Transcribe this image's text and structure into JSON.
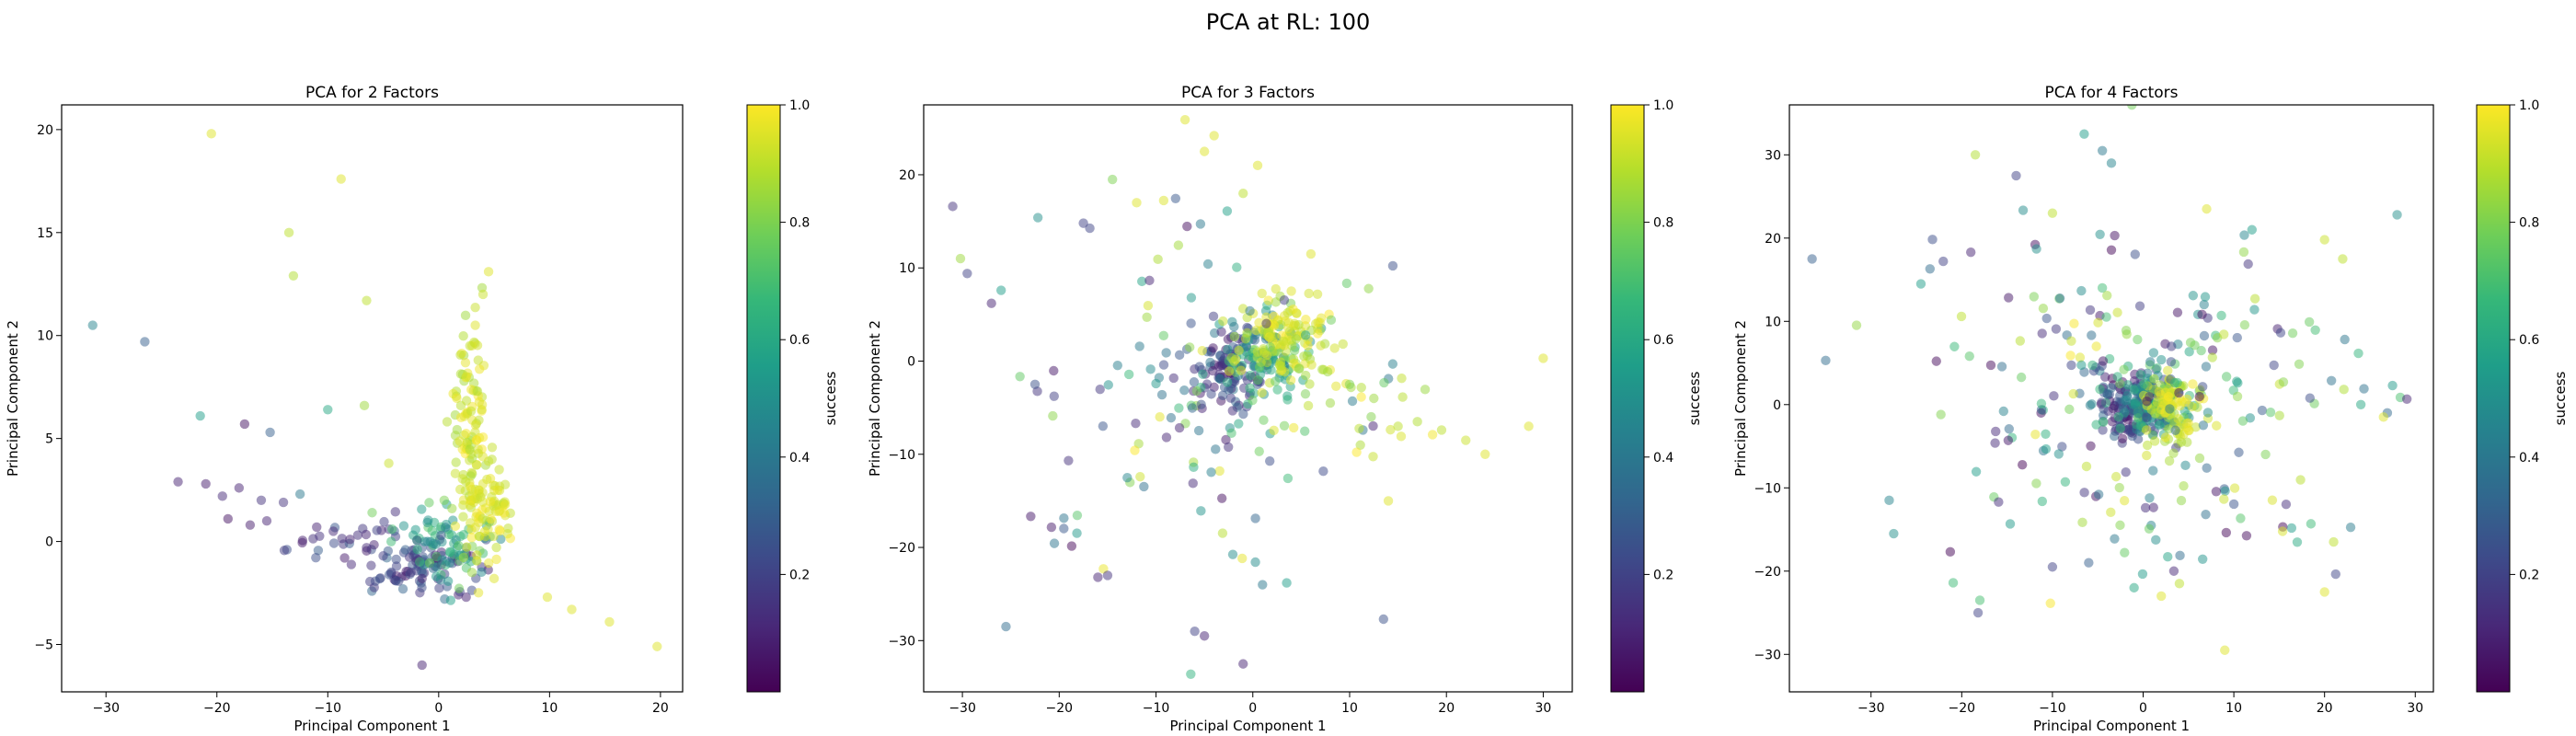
{
  "figure": {
    "suptitle": "PCA at RL: 100"
  },
  "colormap": {
    "name": "viridis",
    "stops": [
      "#440154",
      "#482878",
      "#3e4989",
      "#31688e",
      "#26828e",
      "#1f9e89",
      "#35b779",
      "#6ece58",
      "#b5de2b",
      "#fde725"
    ]
  },
  "chart_data": [
    {
      "type": "scatter",
      "title": "PCA for 2 Factors",
      "xlabel": "Principal Component 1",
      "ylabel": "Principal Component 2",
      "xlim": [
        -34,
        22
      ],
      "ylim": [
        -7.3,
        21.2
      ],
      "xticks": [
        -30,
        -20,
        -10,
        0,
        10,
        20
      ],
      "yticks": [
        -5,
        0,
        5,
        10,
        15,
        20
      ],
      "grid": false,
      "color_by": "success",
      "colorbar": {
        "label": "success",
        "range": [
          0,
          1
        ],
        "ticks": [
          "0.2",
          "0.4",
          "0.6",
          "0.8",
          "1.0"
        ]
      },
      "points": [
        {
          "x": -31.2,
          "y": 10.5,
          "c": 0.45
        },
        {
          "x": -26.5,
          "y": 9.7,
          "c": 0.3
        },
        {
          "x": -21.5,
          "y": 6.1,
          "c": 0.55
        },
        {
          "x": -20.5,
          "y": 19.8,
          "c": 0.95
        },
        {
          "x": -17.5,
          "y": 5.7,
          "c": 0.05
        },
        {
          "x": -15.2,
          "y": 5.3,
          "c": 0.3
        },
        {
          "x": -10.0,
          "y": 6.4,
          "c": 0.6
        },
        {
          "x": -8.8,
          "y": 17.6,
          "c": 0.95
        },
        {
          "x": -13.5,
          "y": 15.0,
          "c": 0.9
        },
        {
          "x": -13.1,
          "y": 12.9,
          "c": 0.88
        },
        {
          "x": -6.5,
          "y": 11.7,
          "c": 0.9
        },
        {
          "x": -6.7,
          "y": 6.6,
          "c": 0.85
        },
        {
          "x": -4.5,
          "y": 3.8,
          "c": 0.92
        },
        {
          "x": -23.5,
          "y": 2.9,
          "c": 0.1
        },
        {
          "x": -21.0,
          "y": 2.8,
          "c": 0.08
        },
        {
          "x": -19.5,
          "y": 2.2,
          "c": 0.12
        },
        {
          "x": -18.0,
          "y": 2.6,
          "c": 0.1
        },
        {
          "x": -16.0,
          "y": 2.0,
          "c": 0.15
        },
        {
          "x": -14.0,
          "y": 1.9,
          "c": 0.15
        },
        {
          "x": -12.5,
          "y": 2.3,
          "c": 0.4
        },
        {
          "x": -19.0,
          "y": 1.1,
          "c": 0.05
        },
        {
          "x": -17.0,
          "y": 0.8,
          "c": 0.08
        },
        {
          "x": -15.5,
          "y": 1.0,
          "c": 0.1
        },
        {
          "x": -11.0,
          "y": 0.7,
          "c": 0.1
        },
        {
          "x": -9.5,
          "y": 0.5,
          "c": 0.12
        },
        {
          "x": -8.0,
          "y": 0.1,
          "c": 0.1
        },
        {
          "x": -6.5,
          "y": -0.3,
          "c": 0.12
        },
        {
          "x": -5.0,
          "y": -0.7,
          "c": 0.18
        },
        {
          "x": -3.8,
          "y": -1.2,
          "c": 0.2
        },
        {
          "x": -2.5,
          "y": -1.5,
          "c": 0.15
        },
        {
          "x": -1.5,
          "y": -1.8,
          "c": 0.1
        },
        {
          "x": -0.5,
          "y": -1.3,
          "c": 0.35
        },
        {
          "x": 0.3,
          "y": -0.9,
          "c": 0.5
        },
        {
          "x": 1.0,
          "y": -0.5,
          "c": 0.65
        },
        {
          "x": 1.8,
          "y": -0.2,
          "c": 0.75
        },
        {
          "x": -3.0,
          "y": -0.4,
          "c": 0.3
        },
        {
          "x": -1.0,
          "y": 0.0,
          "c": 0.45
        },
        {
          "x": -4.2,
          "y": 0.6,
          "c": 0.7
        },
        {
          "x": -6.0,
          "y": 1.4,
          "c": 0.78
        },
        {
          "x": -1.5,
          "y": -6.0,
          "c": 0.1
        },
        {
          "x": 2.5,
          "y": 8.0,
          "c": 0.95
        },
        {
          "x": 3.3,
          "y": 10.5,
          "c": 0.95
        },
        {
          "x": 4.0,
          "y": 12.0,
          "c": 0.92
        },
        {
          "x": 4.5,
          "y": 13.1,
          "c": 0.95
        },
        {
          "x": 2.0,
          "y": 6.6,
          "c": 0.9
        },
        {
          "x": 3.5,
          "y": 7.3,
          "c": 0.88
        },
        {
          "x": 1.5,
          "y": 3.3,
          "c": 0.92
        },
        {
          "x": 4.0,
          "y": 2.8,
          "c": 0.95
        },
        {
          "x": 5.5,
          "y": 1.5,
          "c": 0.95
        },
        {
          "x": 6.0,
          "y": 1.8,
          "c": 0.97
        },
        {
          "x": 5.0,
          "y": -1.8,
          "c": 0.95
        },
        {
          "x": 9.8,
          "y": -2.7,
          "c": 0.95
        },
        {
          "x": 12.0,
          "y": -3.3,
          "c": 0.95
        },
        {
          "x": 15.4,
          "y": -3.9,
          "c": 0.95
        },
        {
          "x": 19.7,
          "y": -5.1,
          "c": 0.95
        },
        {
          "x": 3.0,
          "y": -1.5,
          "c": 0.85
        },
        {
          "x": 1.2,
          "y": 1.6,
          "c": 0.85
        },
        {
          "x": 0.5,
          "y": 2.0,
          "c": 0.8
        }
      ],
      "clusters": [
        {
          "cx": -1.5,
          "cy": -1.3,
          "sx": 2.5,
          "sy": 0.7,
          "n": 80,
          "c": [
            0.05,
            0.35
          ],
          "seed": 11
        },
        {
          "cx": 0.5,
          "cy": -0.4,
          "sx": 1.8,
          "sy": 1.0,
          "n": 70,
          "c": [
            0.4,
            0.8
          ],
          "seed": 12
        },
        {
          "cx": 2.8,
          "cy": 4.8,
          "sx": 0.8,
          "sy": 2.8,
          "n": 110,
          "c": [
            0.85,
            1.0
          ],
          "seed": 13
        },
        {
          "cx": 4.6,
          "cy": 2.0,
          "sx": 1.1,
          "sy": 1.3,
          "n": 70,
          "c": [
            0.9,
            1.0
          ],
          "seed": 14
        },
        {
          "cx": -7.5,
          "cy": 0.0,
          "sx": 3.0,
          "sy": 0.7,
          "n": 30,
          "c": [
            0.05,
            0.3
          ],
          "seed": 15
        }
      ]
    },
    {
      "type": "scatter",
      "title": "PCA for 3 Factors",
      "xlabel": "Principal Component 1",
      "ylabel": "Principal Component 2",
      "xlim": [
        -34,
        33
      ],
      "ylim": [
        -35.5,
        27.5
      ],
      "xticks": [
        -30,
        -20,
        -10,
        0,
        10,
        20,
        30
      ],
      "yticks": [
        -30,
        -20,
        -10,
        0,
        10,
        20
      ],
      "grid": false,
      "color_by": "success",
      "colorbar": {
        "label": "success",
        "range": [
          0,
          1
        ],
        "ticks": [
          "0.2",
          "0.4",
          "0.6",
          "0.8",
          "1.0"
        ]
      },
      "points": [
        {
          "x": -31.0,
          "y": 16.6,
          "c": 0.15
        },
        {
          "x": -30.2,
          "y": 11.0,
          "c": 0.85
        },
        {
          "x": -29.5,
          "y": 9.4,
          "c": 0.2
        },
        {
          "x": -27.0,
          "y": 6.2,
          "c": 0.1
        },
        {
          "x": -26.0,
          "y": 7.6,
          "c": 0.55
        },
        {
          "x": -25.5,
          "y": -28.5,
          "c": 0.35
        },
        {
          "x": -22.2,
          "y": 15.4,
          "c": 0.5
        },
        {
          "x": -22.5,
          "y": -2.5,
          "c": 0.25
        },
        {
          "x": -17.5,
          "y": 14.8,
          "c": 0.2
        },
        {
          "x": -14.5,
          "y": 19.5,
          "c": 0.8
        },
        {
          "x": -12.0,
          "y": 17.0,
          "c": 0.95
        },
        {
          "x": -7.0,
          "y": 25.9,
          "c": 0.95
        },
        {
          "x": -5.0,
          "y": 22.5,
          "c": 0.95
        },
        {
          "x": -4.0,
          "y": 24.2,
          "c": 0.95
        },
        {
          "x": -1.0,
          "y": 18.0,
          "c": 0.9
        },
        {
          "x": 0.5,
          "y": 21.0,
          "c": 0.95
        },
        {
          "x": -16.0,
          "y": -23.2,
          "c": 0.1
        },
        {
          "x": -15.0,
          "y": -23.0,
          "c": 0.15
        },
        {
          "x": -6.0,
          "y": -29.0,
          "c": 0.2
        },
        {
          "x": -5.0,
          "y": -29.5,
          "c": 0.1
        },
        {
          "x": -1.0,
          "y": -32.5,
          "c": 0.1
        },
        {
          "x": 1.0,
          "y": -24.0,
          "c": 0.4
        },
        {
          "x": 3.5,
          "y": -23.8,
          "c": 0.55
        },
        {
          "x": 13.5,
          "y": -27.7,
          "c": 0.25
        },
        {
          "x": 14.0,
          "y": -15.0,
          "c": 0.95
        },
        {
          "x": 30.0,
          "y": 0.3,
          "c": 0.95
        },
        {
          "x": 28.5,
          "y": -7.0,
          "c": 0.95
        },
        {
          "x": 24.0,
          "y": -10.0,
          "c": 0.95
        },
        {
          "x": 22.0,
          "y": -8.5,
          "c": 0.92
        },
        {
          "x": 19.5,
          "y": -7.4,
          "c": 0.9
        },
        {
          "x": 17.0,
          "y": -6.5,
          "c": 0.88
        },
        {
          "x": 15.0,
          "y": -7.0,
          "c": 0.9
        },
        {
          "x": 12.5,
          "y": -4.0,
          "c": 0.85
        },
        {
          "x": 10.0,
          "y": -2.5,
          "c": 0.8
        },
        {
          "x": 8.0,
          "y": -4.5,
          "c": 0.85
        },
        {
          "x": 6.0,
          "y": 11.5,
          "c": 0.95
        }
      ],
      "clusters": [
        {
          "cx": -2.0,
          "cy": -1.0,
          "sx": 2.0,
          "sy": 2.3,
          "n": 110,
          "c": [
            0.05,
            0.4
          ],
          "seed": 21
        },
        {
          "cx": 0.8,
          "cy": 0.5,
          "sx": 2.2,
          "sy": 2.3,
          "n": 90,
          "c": [
            0.4,
            0.8
          ],
          "seed": 22
        },
        {
          "cx": 3.5,
          "cy": 2.2,
          "sx": 2.4,
          "sy": 2.2,
          "n": 130,
          "c": [
            0.85,
            1.0
          ],
          "seed": 23
        },
        {
          "cx": -6.0,
          "cy": -4.0,
          "sx": 9.0,
          "sy": 10.0,
          "n": 110,
          "c": [
            0.0,
            1.0
          ],
          "seed": 24
        },
        {
          "cx": 8.0,
          "cy": -3.0,
          "sx": 5.0,
          "sy": 4.0,
          "n": 30,
          "c": [
            0.75,
            1.0
          ],
          "seed": 25
        }
      ]
    },
    {
      "type": "scatter",
      "title": "PCA for 4 Factors",
      "xlabel": "Principal Component 1",
      "ylabel": "Principal Component 2",
      "xlim": [
        -39,
        32
      ],
      "ylim": [
        -34.5,
        36
      ],
      "xticks": [
        -30,
        -20,
        -10,
        0,
        10,
        20,
        30
      ],
      "yticks": [
        -30,
        -20,
        -10,
        0,
        10,
        20,
        30
      ],
      "grid": false,
      "color_by": "success",
      "colorbar": {
        "label": "success",
        "range": [
          0,
          1
        ],
        "ticks": [
          "0.2",
          "0.4",
          "0.6",
          "0.8",
          "1.0"
        ]
      },
      "points": [
        {
          "x": -36.5,
          "y": 17.5,
          "c": 0.3
        },
        {
          "x": -35.0,
          "y": 5.3,
          "c": 0.35
        },
        {
          "x": -28.0,
          "y": -11.5,
          "c": 0.45
        },
        {
          "x": -27.5,
          "y": -15.5,
          "c": 0.5
        },
        {
          "x": -24.5,
          "y": 14.5,
          "c": 0.55
        },
        {
          "x": -23.5,
          "y": 16.3,
          "c": 0.35
        },
        {
          "x": -19.0,
          "y": 18.3,
          "c": 0.1
        },
        {
          "x": -18.5,
          "y": 30.0,
          "c": 0.88
        },
        {
          "x": -18.0,
          "y": -23.5,
          "c": 0.7
        },
        {
          "x": -18.2,
          "y": -25.0,
          "c": 0.2
        },
        {
          "x": -14.0,
          "y": 27.5,
          "c": 0.2
        },
        {
          "x": -10.0,
          "y": 23.0,
          "c": 0.9
        },
        {
          "x": -6.5,
          "y": 32.5,
          "c": 0.55
        },
        {
          "x": -4.5,
          "y": 30.5,
          "c": 0.4
        },
        {
          "x": -3.5,
          "y": 29.0,
          "c": 0.45
        },
        {
          "x": -1.0,
          "y": -22.0,
          "c": 0.6
        },
        {
          "x": 2.0,
          "y": -23.0,
          "c": 0.95
        },
        {
          "x": 4.0,
          "y": -21.5,
          "c": 0.9
        },
        {
          "x": 9.0,
          "y": -29.5,
          "c": 0.95
        },
        {
          "x": 7.0,
          "y": 23.5,
          "c": 0.95
        },
        {
          "x": 12.0,
          "y": 21.0,
          "c": 0.55
        },
        {
          "x": 20.0,
          "y": 19.8,
          "c": 0.92
        },
        {
          "x": 22.0,
          "y": 17.5,
          "c": 0.9
        },
        {
          "x": 28.0,
          "y": 22.8,
          "c": 0.5
        },
        {
          "x": 24.0,
          "y": 0.0,
          "c": 0.6
        },
        {
          "x": 26.5,
          "y": -1.5,
          "c": 0.95
        },
        {
          "x": 21.0,
          "y": -16.5,
          "c": 0.9
        },
        {
          "x": 20.0,
          "y": -22.5,
          "c": 0.95
        },
        {
          "x": -6.0,
          "y": -19.0,
          "c": 0.3
        },
        {
          "x": -10.0,
          "y": -19.5,
          "c": 0.2
        }
      ],
      "clusters": [
        {
          "cx": -1.2,
          "cy": -0.5,
          "sx": 2.0,
          "sy": 2.0,
          "n": 130,
          "c": [
            0.03,
            0.35
          ],
          "seed": 31
        },
        {
          "cx": 1.2,
          "cy": 0.3,
          "sx": 2.0,
          "sy": 2.2,
          "n": 110,
          "c": [
            0.35,
            0.8
          ],
          "seed": 32
        },
        {
          "cx": 3.2,
          "cy": -0.3,
          "sx": 1.6,
          "sy": 2.2,
          "n": 90,
          "c": [
            0.85,
            1.0
          ],
          "seed": 33
        },
        {
          "cx": 0.0,
          "cy": 0.0,
          "sx": 11.0,
          "sy": 10.0,
          "n": 240,
          "c": [
            0.0,
            1.0
          ],
          "seed": 34
        }
      ]
    }
  ]
}
